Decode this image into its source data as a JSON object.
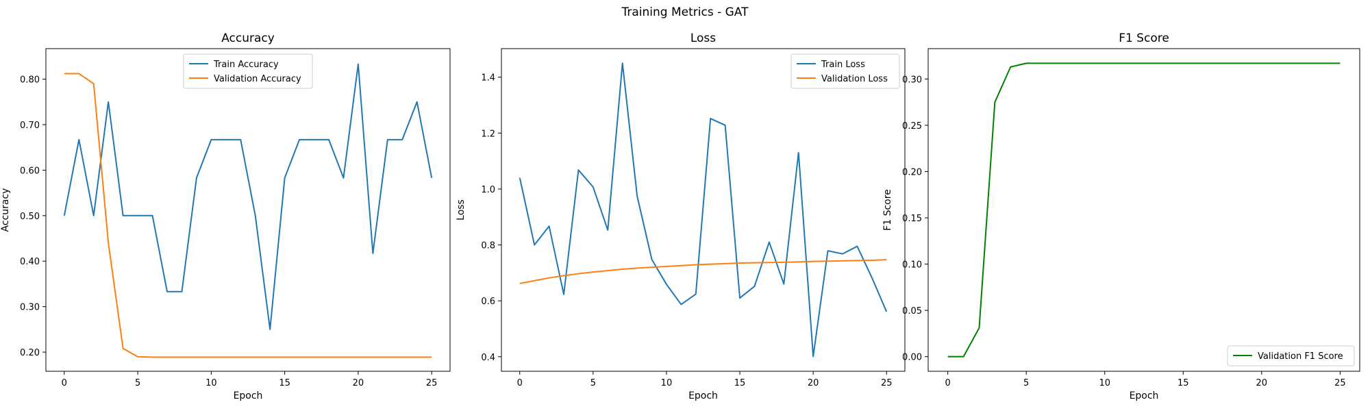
{
  "figure": {
    "title": "Training Metrics - GAT"
  },
  "colors": {
    "blue": "#1f77b4",
    "orange": "#ff7f0e",
    "green": "#008000"
  },
  "chart_data": [
    {
      "type": "line",
      "title": "Accuracy",
      "xlabel": "Epoch",
      "ylabel": "Accuracy",
      "xlim": [
        -1.25,
        26.25
      ],
      "ylim": [
        0.158,
        0.867
      ],
      "xticks": [
        0,
        5,
        10,
        15,
        20,
        25
      ],
      "yticks": [
        0.2,
        0.3,
        0.4,
        0.5,
        0.6,
        0.7,
        0.8
      ],
      "x": [
        0,
        1,
        2,
        3,
        4,
        5,
        6,
        7,
        8,
        9,
        10,
        11,
        12,
        13,
        14,
        15,
        16,
        17,
        18,
        19,
        20,
        21,
        22,
        23,
        24,
        25
      ],
      "legend_position": "upper center",
      "series": [
        {
          "name": "Train Accuracy",
          "color": "#1f77b4",
          "values": [
            0.5,
            0.667,
            0.5,
            0.75,
            0.5,
            0.5,
            0.5,
            0.333,
            0.333,
            0.583,
            0.667,
            0.667,
            0.667,
            0.5,
            0.25,
            0.583,
            0.667,
            0.667,
            0.667,
            0.583,
            0.833,
            0.417,
            0.667,
            0.667,
            0.75,
            0.583
          ]
        },
        {
          "name": "Validation Accuracy",
          "color": "#ff7f0e",
          "values": [
            0.812,
            0.812,
            0.79,
            0.44,
            0.208,
            0.19,
            0.189,
            0.189,
            0.189,
            0.189,
            0.189,
            0.189,
            0.189,
            0.189,
            0.189,
            0.189,
            0.189,
            0.189,
            0.189,
            0.189,
            0.189,
            0.189,
            0.189,
            0.189,
            0.189,
            0.189
          ]
        }
      ]
    },
    {
      "type": "line",
      "title": "Loss",
      "xlabel": "Epoch",
      "ylabel": "Loss",
      "xlim": [
        -1.25,
        26.25
      ],
      "ylim": [
        0.348,
        1.502
      ],
      "xticks": [
        0,
        5,
        10,
        15,
        20,
        25
      ],
      "yticks": [
        0.4,
        0.6,
        0.8,
        1.0,
        1.2,
        1.4
      ],
      "x": [
        0,
        1,
        2,
        3,
        4,
        5,
        6,
        7,
        8,
        9,
        10,
        11,
        12,
        13,
        14,
        15,
        16,
        17,
        18,
        19,
        20,
        21,
        22,
        23,
        24,
        25
      ],
      "legend_position": "upper right",
      "series": [
        {
          "name": "Train Loss",
          "color": "#1f77b4",
          "values": [
            1.04,
            0.8,
            0.867,
            0.623,
            1.068,
            1.007,
            0.853,
            1.45,
            0.975,
            0.748,
            0.659,
            0.587,
            0.624,
            1.252,
            1.228,
            0.61,
            0.652,
            0.81,
            0.66,
            1.13,
            0.401,
            0.779,
            0.768,
            0.795,
            0.683,
            0.561
          ]
        },
        {
          "name": "Validation Loss",
          "color": "#ff7f0e",
          "values": [
            0.662,
            0.672,
            0.682,
            0.69,
            0.697,
            0.703,
            0.708,
            0.713,
            0.717,
            0.72,
            0.723,
            0.726,
            0.729,
            0.731,
            0.733,
            0.735,
            0.736,
            0.737,
            0.738,
            0.739,
            0.741,
            0.742,
            0.743,
            0.744,
            0.745,
            0.747
          ]
        }
      ]
    },
    {
      "type": "line",
      "title": "F1 Score",
      "xlabel": "Epoch",
      "ylabel": "F1 Score",
      "xlim": [
        -1.25,
        26.25
      ],
      "ylim": [
        -0.0158,
        0.3328
      ],
      "xticks": [
        0,
        5,
        10,
        15,
        20,
        25
      ],
      "yticks": [
        0.0,
        0.05,
        0.1,
        0.15,
        0.2,
        0.25,
        0.3
      ],
      "x": [
        0,
        1,
        2,
        3,
        4,
        5,
        6,
        7,
        8,
        9,
        10,
        11,
        12,
        13,
        14,
        15,
        16,
        17,
        18,
        19,
        20,
        21,
        22,
        23,
        24,
        25
      ],
      "legend_position": "lower right",
      "series": [
        {
          "name": "Validation F1 Score",
          "color": "#008000",
          "values": [
            0.0,
            0.0,
            0.031,
            0.275,
            0.313,
            0.317,
            0.317,
            0.317,
            0.317,
            0.317,
            0.317,
            0.317,
            0.317,
            0.317,
            0.317,
            0.317,
            0.317,
            0.317,
            0.317,
            0.317,
            0.317,
            0.317,
            0.317,
            0.317,
            0.317,
            0.317
          ]
        }
      ]
    }
  ]
}
